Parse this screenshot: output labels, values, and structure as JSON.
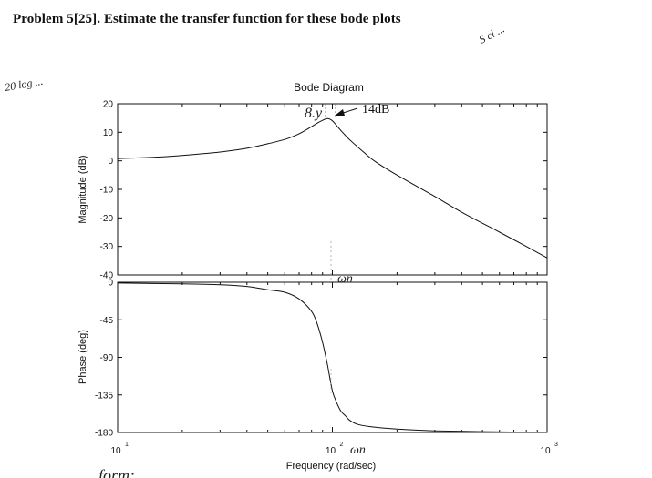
{
  "problem": {
    "title": "Problem 5[25].  Estimate the transfer function for these bode plots"
  },
  "chart_data": [
    {
      "type": "line",
      "panel": "magnitude",
      "title": "Bode Diagram",
      "ylabel": "Magnitude (dB)",
      "xlabel": "",
      "xscale": "log",
      "xlim": [
        10,
        1000
      ],
      "ylim": [
        -40,
        20
      ],
      "yticks": [
        20,
        10,
        0,
        -10,
        -20,
        -30,
        -40
      ],
      "grid": false,
      "annotation": {
        "text": "14dB",
        "x": 100,
        "y": 14
      },
      "series": [
        {
          "x": [
            10,
            15,
            20,
            30,
            40,
            50,
            60,
            70,
            80,
            85,
            90,
            95,
            100,
            110,
            120,
            140,
            160,
            200,
            300,
            400,
            600,
            800,
            1000
          ],
          "y": [
            0.8,
            1.3,
            1.9,
            3.1,
            4.4,
            6,
            7.5,
            9.5,
            12,
            13.2,
            14.2,
            14.8,
            14,
            10.5,
            7.5,
            3,
            -0.5,
            -5,
            -12.5,
            -18,
            -25,
            -30,
            -34
          ]
        }
      ]
    },
    {
      "type": "line",
      "panel": "phase",
      "title": "",
      "ylabel": "Phase (deg)",
      "xlabel": "Frequency  (rad/sec)",
      "xscale": "log",
      "xlim": [
        10,
        1000
      ],
      "ylim": [
        -180,
        0
      ],
      "yticks": [
        0,
        -45,
        -90,
        -135,
        -180
      ],
      "xtick_labels": [
        {
          "base": "10",
          "exp": "1"
        },
        {
          "base": "10",
          "exp": "2"
        },
        {
          "base": "10",
          "exp": "3"
        }
      ],
      "grid": false,
      "series": [
        {
          "x": [
            10,
            20,
            30,
            40,
            50,
            60,
            70,
            80,
            85,
            90,
            95,
            100,
            105,
            110,
            115,
            120,
            130,
            150,
            200,
            300,
            500,
            1000
          ],
          "y": [
            -1,
            -2,
            -3,
            -5,
            -9,
            -12,
            -20,
            -35,
            -50,
            -72,
            -100,
            -130,
            -145,
            -155,
            -160,
            -165,
            -170,
            -173,
            -176,
            -178,
            -179,
            -180
          ]
        }
      ]
    }
  ],
  "handwriting": {
    "peak_note": "8.y",
    "wn_mark": "ωn",
    "wn_axis": "ωn",
    "left_note": "20 log ...",
    "right_note": "S cl ...",
    "bottom_note": "... form:"
  }
}
